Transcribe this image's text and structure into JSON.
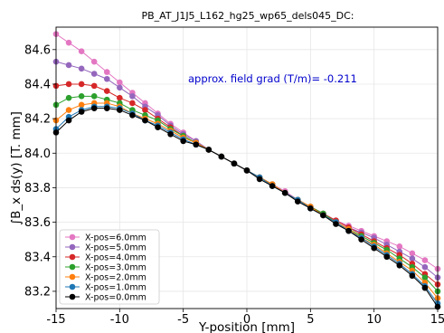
{
  "chart_data": {
    "type": "line",
    "title": "PB_AT_J1J5_L162_hg25_wp65_dels045_DC:",
    "xlabel": "Y-position [mm]",
    "ylabel": "∫B_x ds(y)   [T. mm]",
    "xlim": [
      -15,
      15
    ],
    "ylim": [
      83.1,
      84.73
    ],
    "xticks": [
      "-15",
      "-10",
      "-5",
      "0",
      "5",
      "10",
      "15"
    ],
    "yticks": [
      "83.2",
      "83.4",
      "83.6",
      "83.8",
      "84.0",
      "84.2",
      "84.4",
      "84.6"
    ],
    "grid": true,
    "legend_position": "lower-left",
    "annotation": "approx. field grad (T/m)=  -0.211",
    "annotation_color": "#0000cc",
    "x": [
      -15,
      -14,
      -13,
      -12,
      -11,
      -10,
      -9,
      -8,
      -7,
      -6,
      -5,
      -4,
      -3,
      -2,
      -1,
      0,
      1,
      2,
      3,
      4,
      5,
      6,
      7,
      8,
      9,
      10,
      11,
      12,
      13,
      14,
      15
    ],
    "series": [
      {
        "name": "X-pos=6.0mm",
        "color": "#e377c2",
        "values": [
          84.69,
          84.64,
          84.59,
          84.53,
          84.47,
          84.41,
          84.35,
          84.29,
          84.23,
          84.17,
          84.12,
          84.07,
          84.02,
          83.98,
          83.94,
          83.9,
          83.86,
          83.82,
          83.78,
          83.73,
          83.69,
          83.65,
          83.61,
          83.58,
          83.55,
          83.52,
          83.49,
          83.46,
          83.42,
          83.38,
          83.33
        ]
      },
      {
        "name": "X-pos=5.0mm",
        "color": "#9467bd",
        "values": [
          84.53,
          84.51,
          84.49,
          84.46,
          84.43,
          84.38,
          84.33,
          84.27,
          84.22,
          84.16,
          84.11,
          84.07,
          84.02,
          83.98,
          83.94,
          83.9,
          83.86,
          83.82,
          83.77,
          83.73,
          83.69,
          83.65,
          83.61,
          83.57,
          83.54,
          83.51,
          83.47,
          83.43,
          83.39,
          83.34,
          83.28
        ]
      },
      {
        "name": "X-pos=4.0mm",
        "color": "#d62728",
        "values": [
          84.39,
          84.4,
          84.4,
          84.39,
          84.36,
          84.32,
          84.29,
          84.25,
          84.2,
          84.15,
          84.1,
          84.06,
          84.02,
          83.98,
          83.94,
          83.9,
          83.86,
          83.82,
          83.77,
          83.73,
          83.69,
          83.65,
          83.61,
          83.57,
          83.53,
          83.49,
          83.45,
          83.41,
          83.36,
          83.3,
          83.24
        ]
      },
      {
        "name": "X-pos=3.0mm",
        "color": "#2ca02c",
        "values": [
          84.28,
          84.32,
          84.33,
          84.33,
          84.31,
          84.29,
          84.25,
          84.22,
          84.19,
          84.14,
          84.1,
          84.06,
          84.02,
          83.98,
          83.94,
          83.9,
          83.86,
          83.82,
          83.77,
          83.73,
          83.69,
          83.65,
          83.6,
          83.56,
          83.52,
          83.48,
          83.44,
          83.39,
          83.34,
          83.28,
          83.2
        ]
      },
      {
        "name": "X-pos=2.0mm",
        "color": "#ff7f0e",
        "values": [
          84.19,
          84.25,
          84.28,
          84.29,
          84.29,
          84.27,
          84.23,
          84.2,
          84.17,
          84.13,
          84.09,
          84.06,
          84.02,
          83.98,
          83.94,
          83.9,
          83.86,
          83.82,
          83.77,
          83.73,
          83.69,
          83.64,
          83.6,
          83.56,
          83.51,
          83.47,
          83.42,
          83.37,
          83.32,
          83.25,
          83.16
        ]
      },
      {
        "name": "X-pos=1.0mm",
        "color": "#1f77b4",
        "values": [
          84.14,
          84.21,
          84.25,
          84.27,
          84.27,
          84.26,
          84.23,
          84.19,
          84.16,
          84.12,
          84.08,
          84.05,
          84.02,
          83.98,
          83.94,
          83.9,
          83.86,
          83.81,
          83.77,
          83.73,
          83.68,
          83.64,
          83.6,
          83.55,
          83.51,
          83.46,
          83.41,
          83.36,
          83.3,
          83.23,
          83.13
        ]
      },
      {
        "name": "X-pos=0.0mm",
        "color": "#000000",
        "values": [
          84.12,
          84.19,
          84.24,
          84.26,
          84.26,
          84.25,
          84.22,
          84.19,
          84.15,
          84.11,
          84.07,
          84.05,
          84.02,
          83.98,
          83.94,
          83.9,
          83.85,
          83.81,
          83.77,
          83.72,
          83.68,
          83.64,
          83.59,
          83.55,
          83.5,
          83.45,
          83.4,
          83.35,
          83.29,
          83.22,
          83.11
        ]
      }
    ]
  }
}
